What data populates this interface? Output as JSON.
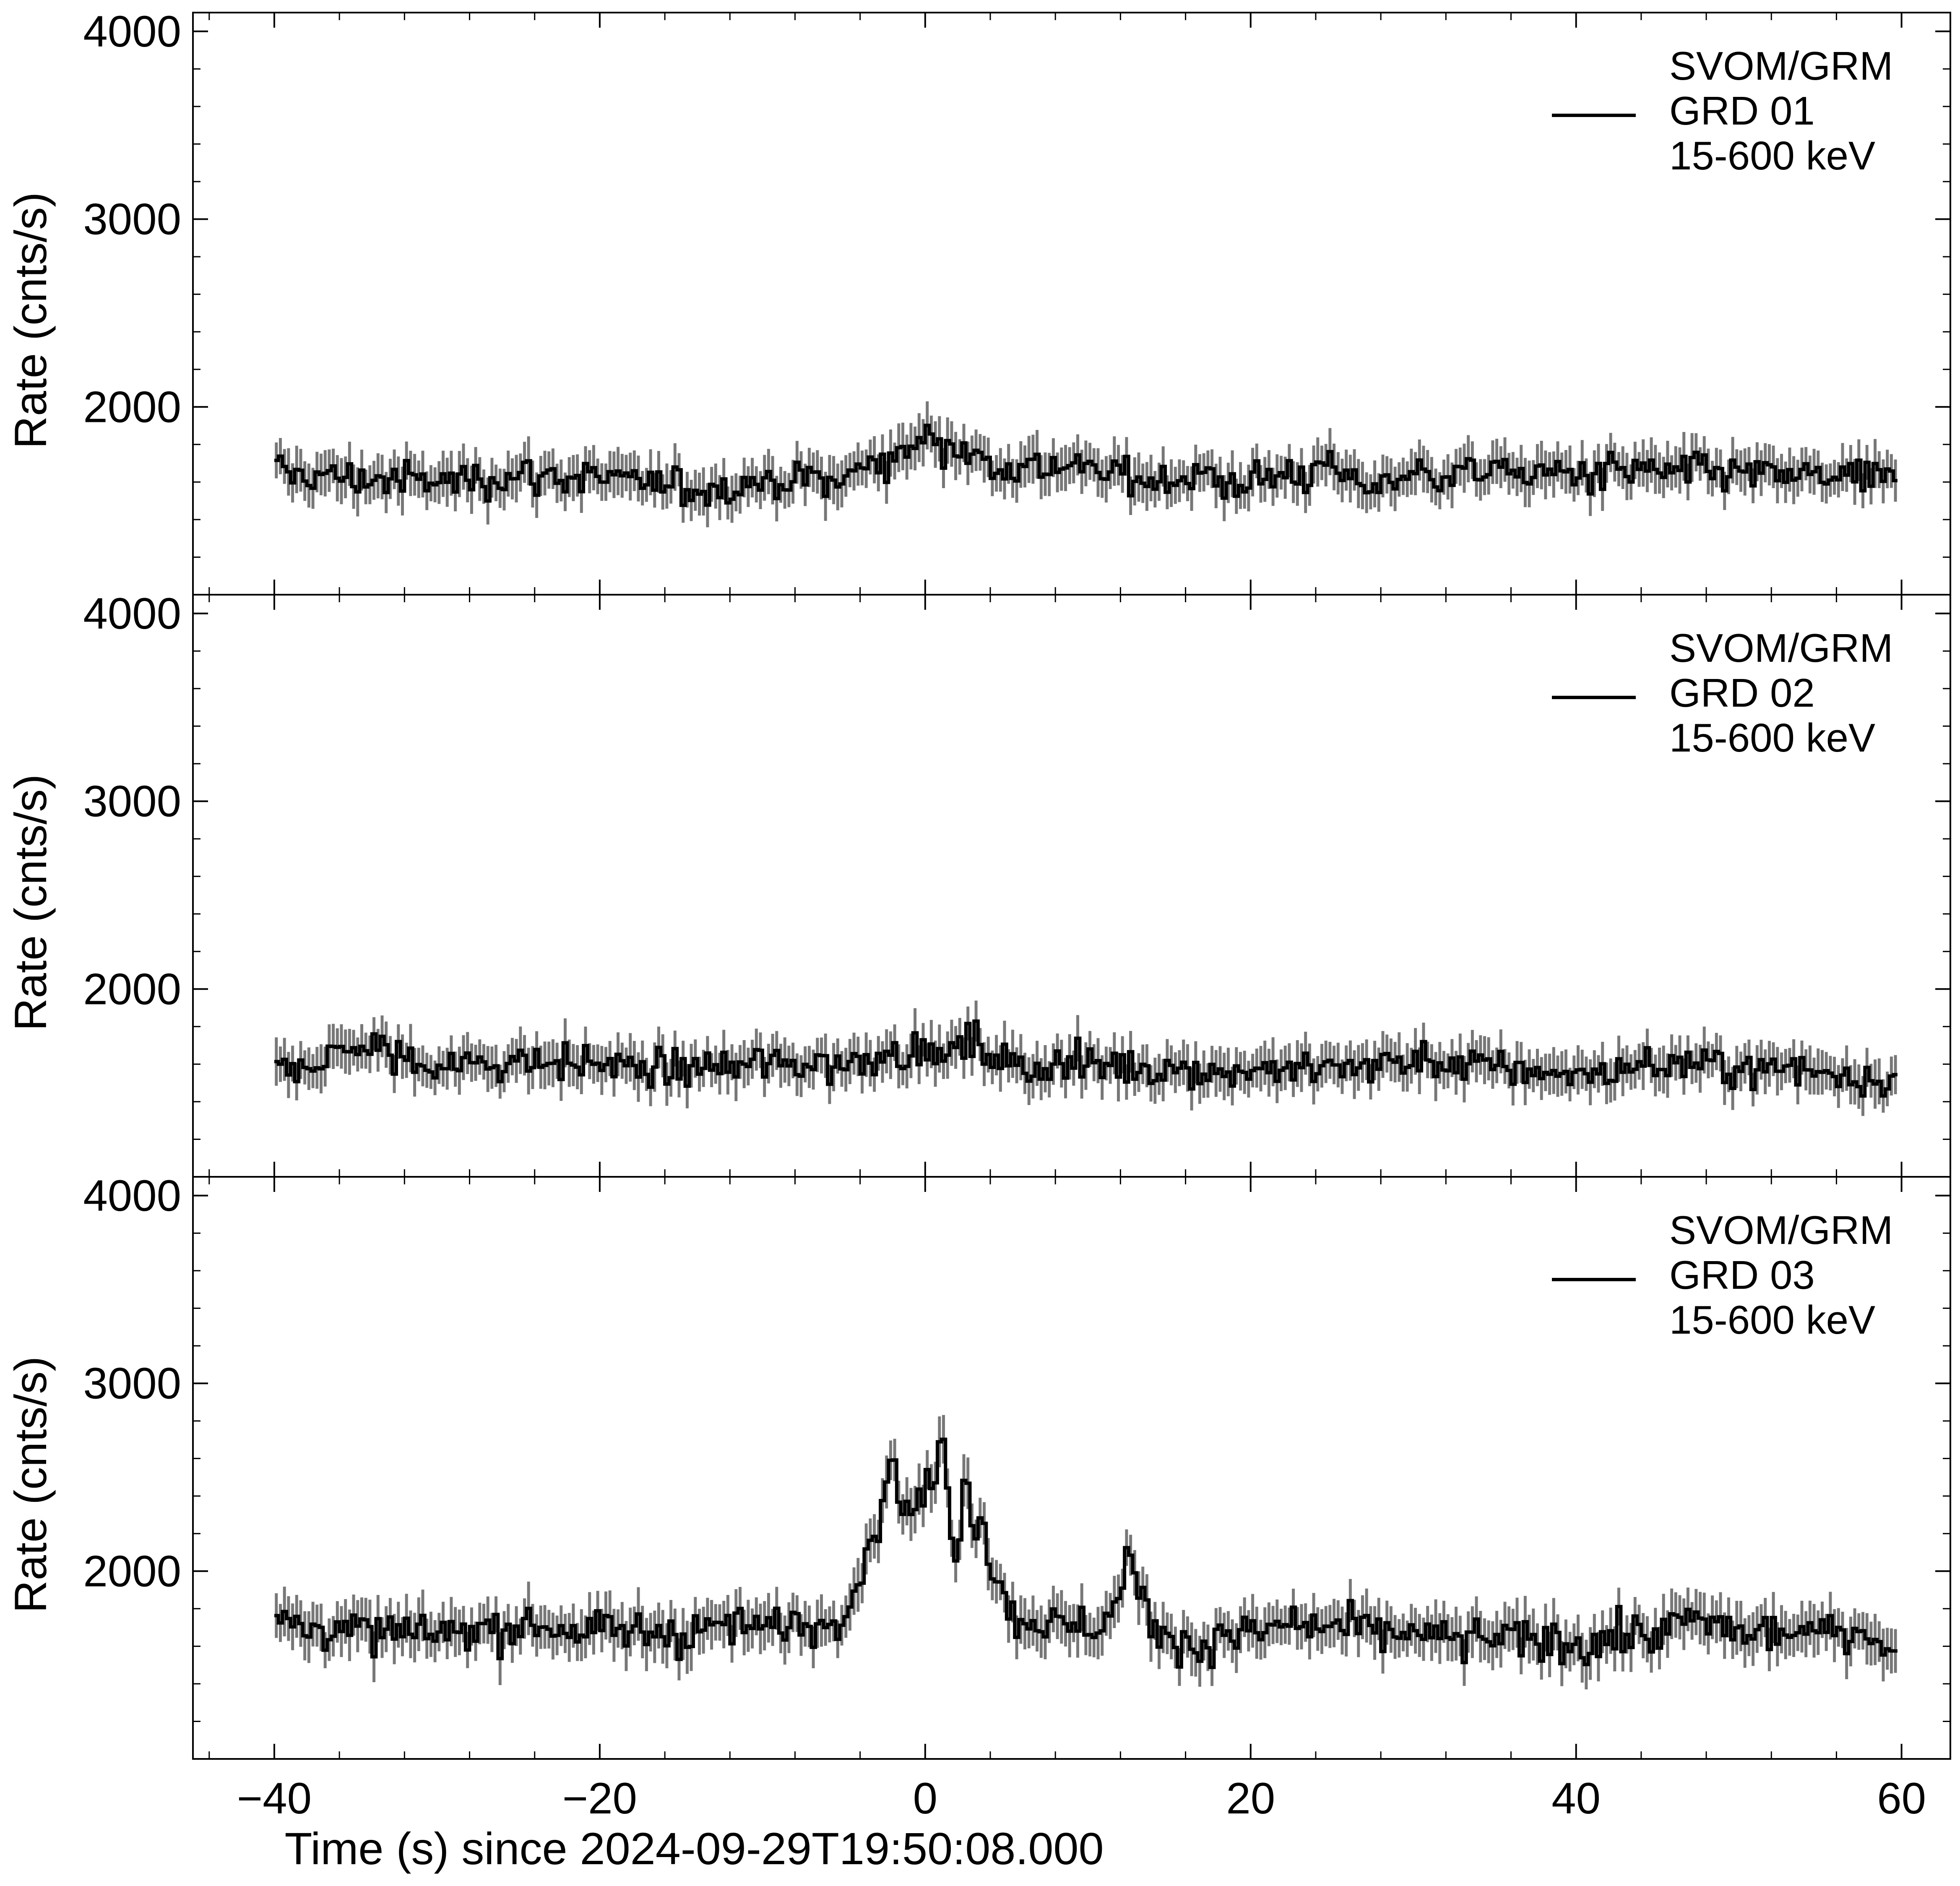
{
  "colors": {
    "line": "#000000",
    "error_bars": "#777777",
    "background": "#ffffff"
  },
  "chart_data": {
    "type": "line",
    "style": "step histogram with vertical error bars, three vertically stacked panels sharing the x axis",
    "xlabel": "Time (s) since 2024-09-29T19:50:08.000",
    "xlim": [
      -45,
      63
    ],
    "xticks": [
      -40,
      -20,
      0,
      20,
      40,
      60
    ],
    "xtick_labels": [
      "−40",
      "−20",
      "0",
      "20",
      "40",
      "60"
    ],
    "grid": false,
    "legend_position": "top-right",
    "panels": [
      {
        "ylabel": "Rate (cnts/s)",
        "ylim": [
          1000,
          4100
        ],
        "yticks": [
          2000,
          3000,
          4000
        ],
        "ytick_labels": [
          "2000",
          "3000",
          "4000"
        ],
        "legend": [
          "SVOM/GRM",
          "GRD 01",
          "15-600 keV"
        ],
        "series": [
          {
            "x": [
              -40,
              -35,
              -30,
              -25,
              -20,
              -15,
              -10,
              -5,
              -3,
              -1,
              0,
              1,
              2,
              3,
              5,
              8,
              10,
              15,
              20,
              25,
              27,
              30,
              35,
              40,
              45,
              50,
              55,
              59.5
            ],
            "y": [
              1650,
              1620,
              1600,
              1640,
              1620,
              1560,
              1600,
              1620,
              1700,
              1780,
              1860,
              1820,
              1800,
              1720,
              1680,
              1700,
              1650,
              1620,
              1600,
              1680,
              1580,
              1640,
              1660,
              1640,
              1660,
              1640,
              1620,
              1600
            ],
            "typical_error": 110
          }
        ]
      },
      {
        "ylabel": "Rate (cnts/s)",
        "ylim": [
          1000,
          4100
        ],
        "yticks": [
          2000,
          3000,
          4000
        ],
        "ytick_labels": [
          "2000",
          "3000",
          "4000"
        ],
        "legend": [
          "SVOM/GRM",
          "GRD 02",
          "15-600 keV"
        ],
        "series": [
          {
            "x": [
              -40,
              -37,
              -35,
              -30,
              -25,
              -20,
              -15,
              -10,
              -5,
              -2,
              0,
              3,
              5,
              10,
              15,
              20,
              25,
              30,
              35,
              40,
              45,
              50,
              55,
              59.5
            ],
            "y": [
              1580,
              1620,
              1700,
              1580,
              1620,
              1600,
              1560,
              1600,
              1600,
              1680,
              1650,
              1700,
              1600,
              1600,
              1580,
              1560,
              1580,
              1620,
              1580,
              1540,
              1600,
              1580,
              1560,
              1520
            ],
            "typical_error": 110
          }
        ]
      },
      {
        "ylabel": "Rate (cnts/s)",
        "ylim": [
          1000,
          4100
        ],
        "yticks": [
          2000,
          3000,
          4000
        ],
        "ytick_labels": [
          "2000",
          "3000",
          "4000"
        ],
        "legend": [
          "SVOM/GRM",
          "GRD 03",
          "15-600 keV"
        ],
        "series": [
          {
            "x": [
              -40,
              -35,
              -30,
              -25,
              -20,
              -15,
              -10,
              -6,
              -5,
              -4,
              -3,
              -2.5,
              -2,
              -1.5,
              -1,
              0,
              0.5,
              1,
              1.5,
              2,
              2.5,
              3,
              3.5,
              4,
              4.5,
              5,
              7,
              9,
              11,
              12,
              12.5,
              13,
              14,
              15,
              17,
              20,
              25,
              30,
              35,
              40,
              45,
              47,
              50,
              55,
              58,
              59.5
            ],
            "y": [
              1720,
              1680,
              1660,
              1700,
              1680,
              1690,
              1700,
              1720,
              1800,
              2000,
              2250,
              2400,
              2650,
              2350,
              2300,
              2450,
              2400,
              2780,
              2300,
              2100,
              2550,
              2200,
              2400,
              1950,
              2050,
              1760,
              1740,
              1700,
              1720,
              1900,
              2100,
              1900,
              1720,
              1650,
              1600,
              1680,
              1700,
              1650,
              1640,
              1620,
              1660,
              1750,
              1680,
              1660,
              1700,
              1500
            ],
            "typical_error": 120
          }
        ]
      }
    ]
  }
}
